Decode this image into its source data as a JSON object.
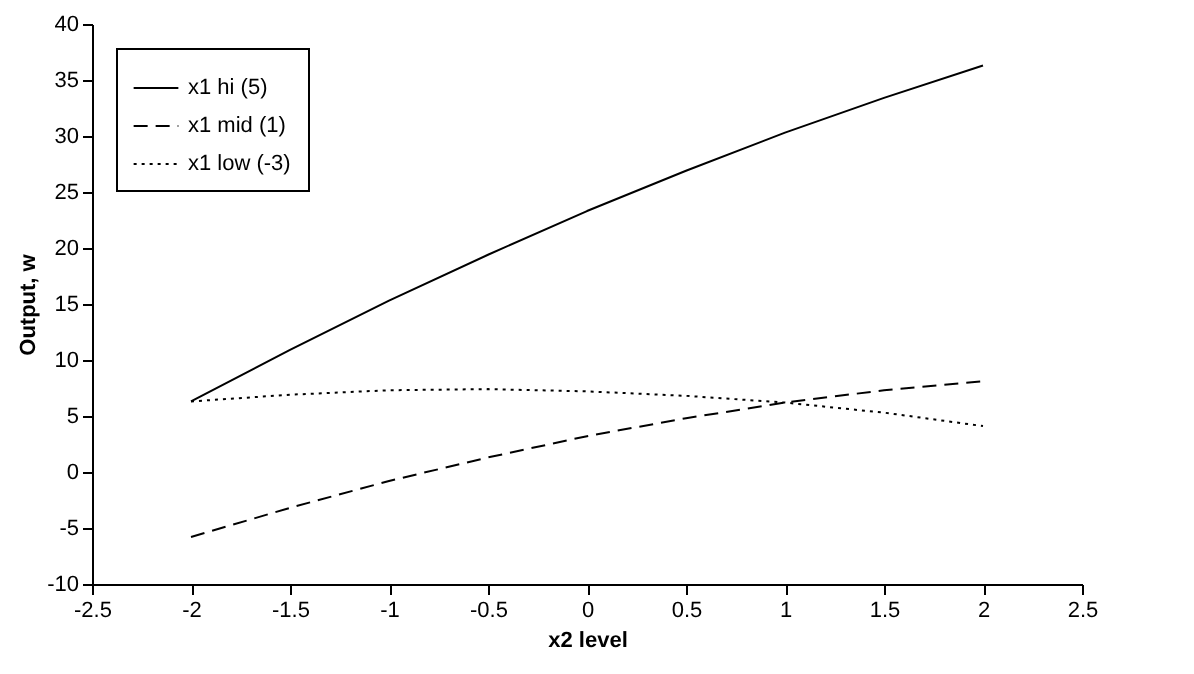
{
  "chart_data": {
    "type": "line",
    "xlabel": "x2 level",
    "ylabel": "Output, w",
    "x": [
      -2,
      -1.5,
      -1,
      -0.5,
      0,
      0.5,
      1,
      1.5,
      2
    ],
    "series": [
      {
        "name": "x1 hi (5)",
        "color": "#000000",
        "line_style": "solid",
        "values": [
          6.3,
          10.9,
          15.3,
          19.4,
          23.3,
          26.9,
          30.3,
          33.4,
          36.3
        ]
      },
      {
        "name": "x1 mid (1)",
        "color": "#000000",
        "line_style": "dashed",
        "values": [
          -5.8,
          -3.2,
          -0.8,
          1.3,
          3.2,
          4.8,
          6.2,
          7.3,
          8.1
        ]
      },
      {
        "name": "x1 low (-3)",
        "color": "#000000",
        "line_style": "dotted",
        "values": [
          6.3,
          6.9,
          7.3,
          7.4,
          7.2,
          6.8,
          6.2,
          5.3,
          4.1
        ]
      }
    ],
    "xlim": [
      -2.5,
      2.5
    ],
    "xticks": [
      -2.5,
      -2,
      -1.5,
      -1,
      -0.5,
      0,
      0.5,
      1,
      1.5,
      2,
      2.5
    ],
    "ylim": [
      -10,
      40
    ],
    "yticks": [
      -10,
      -5,
      0,
      5,
      10,
      15,
      20,
      25,
      30,
      35,
      40
    ],
    "grid": false,
    "legend": "top left",
    "marker": "none"
  }
}
